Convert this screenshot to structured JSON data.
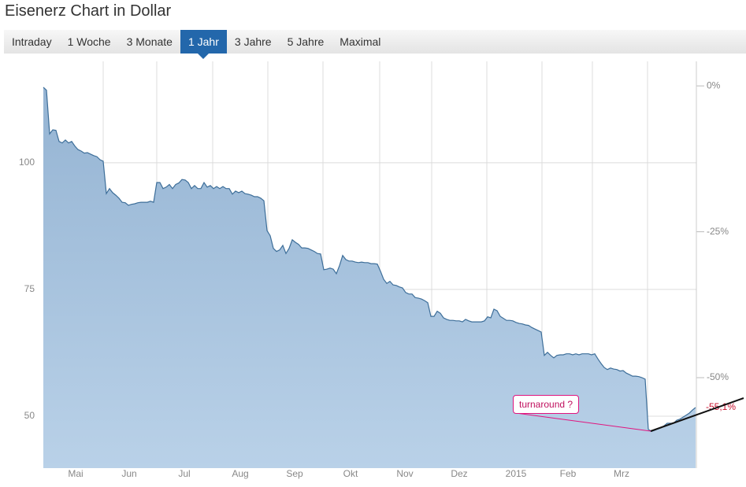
{
  "header": {
    "title": "Eisenerz Chart in Dollar"
  },
  "tabs": {
    "items": [
      "Intraday",
      "1 Woche",
      "3 Monate",
      "1 Jahr",
      "3 Jahre",
      "5 Jahre",
      "Maximal"
    ],
    "active": 3
  },
  "chart_data": {
    "type": "area",
    "color": "#3d6e99",
    "fill_top": "#95b4d3",
    "fill_bottom": "#b9d1e8",
    "x_labels": [
      "Mai",
      "Jun",
      "Jul",
      "Aug",
      "Sep",
      "Okt",
      "Nov",
      "Dez",
      "2015",
      "Feb",
      "Mrz"
    ],
    "values": [
      114.9,
      114.3,
      105.7,
      106.5,
      106.4,
      104.2,
      103.9,
      104.5,
      103.9,
      104.2,
      103.3,
      102.6,
      102.3,
      101.9,
      102.0,
      101.7,
      101.4,
      101.2,
      100.6,
      100.3,
      93.9,
      94.9,
      94.1,
      93.6,
      93.0,
      92.2,
      92.1,
      91.6,
      91.8,
      91.9,
      92.1,
      92.2,
      92.2,
      92.2,
      92.4,
      92.2,
      96.1,
      96.1,
      94.9,
      95.2,
      95.7,
      94.9,
      95.7,
      96.0,
      96.7,
      96.6,
      96.1,
      94.9,
      95.5,
      94.9,
      94.9,
      96.1,
      95.2,
      95.5,
      94.9,
      95.3,
      94.9,
      95.3,
      94.9,
      94.9,
      93.8,
      94.4,
      94.1,
      94.4,
      93.9,
      93.8,
      93.6,
      93.3,
      93.3,
      93.0,
      92.5,
      86.6,
      85.6,
      83.1,
      82.5,
      82.8,
      83.7,
      82.1,
      83.1,
      84.8,
      84.3,
      83.9,
      83.2,
      83.2,
      83.1,
      82.8,
      82.5,
      82.1,
      82.0,
      78.9,
      79.0,
      79.2,
      79.0,
      78.1,
      79.7,
      81.7,
      80.9,
      80.6,
      80.6,
      80.4,
      80.3,
      80.4,
      80.3,
      80.3,
      80.1,
      80.1,
      80.0,
      78.6,
      77.0,
      76.2,
      76.6,
      75.9,
      75.8,
      75.5,
      75.3,
      74.4,
      74.1,
      74.1,
      73.4,
      73.3,
      73.1,
      72.8,
      72.4,
      69.7,
      69.7,
      70.7,
      70.3,
      69.4,
      69.1,
      68.9,
      68.9,
      68.8,
      68.8,
      68.6,
      69.1,
      68.8,
      68.6,
      68.6,
      68.6,
      68.6,
      68.8,
      69.6,
      69.4,
      71.1,
      70.8,
      69.7,
      69.3,
      68.9,
      68.9,
      68.8,
      68.5,
      68.3,
      68.2,
      68.0,
      67.9,
      67.5,
      67.2,
      66.9,
      66.6,
      62.0,
      62.6,
      62.0,
      61.5,
      62.0,
      62.1,
      62.1,
      62.3,
      62.3,
      62.1,
      62.3,
      62.1,
      62.3,
      62.3,
      62.3,
      62.1,
      62.3,
      61.3,
      60.4,
      59.6,
      59.2,
      59.5,
      59.3,
      59.2,
      58.9,
      59.0,
      58.5,
      58.2,
      57.9,
      57.9,
      57.8,
      57.6,
      57.3,
      47.4,
      47.0,
      47.2,
      47.5,
      47.7,
      48.1,
      48.6,
      48.6,
      48.6,
      49.2,
      49.4,
      49.8,
      50.2,
      50.6,
      51.2,
      51.7
    ],
    "ylim": [
      39.75,
      120
    ],
    "yticks": [
      50,
      75,
      100
    ],
    "y2lim": [
      -65.5,
      4.2
    ],
    "y2ticks": [
      {
        "value": 0,
        "label": "0%"
      },
      {
        "value": -25,
        "label": "-25%"
      },
      {
        "value": -50,
        "label": "-50%"
      }
    ],
    "last_value_label": {
      "value": -55.1,
      "label": "-55,1%"
    },
    "last_value_color": "#c8102e",
    "annotation": "turnaround ?",
    "grid": true
  }
}
